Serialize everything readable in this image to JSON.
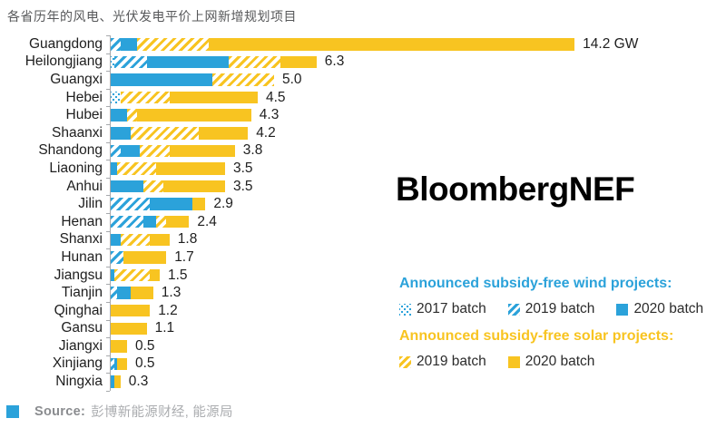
{
  "title": "各省历年的风电、光伏发电平价上网新增规划项目",
  "logo": "BloombergNEF",
  "source": {
    "label": "Source:",
    "text": "彭博新能源财经, 能源局"
  },
  "colors": {
    "wind_blue": "#2ba2da",
    "solar_yellow": "#f8c421",
    "title_gray": "#57585a",
    "label_dark": "#1e1e1e",
    "axis_gray": "#a7a9ac",
    "source_gray": "#8a8c8f"
  },
  "legend": {
    "wind_heading": "Announced subsidy-free wind projects:",
    "wind_items": [
      {
        "label": "2017 batch",
        "group": "wind",
        "pattern": "dotted"
      },
      {
        "label": "2019 batch",
        "group": "wind",
        "pattern": "hatched"
      },
      {
        "label": "2020 batch",
        "group": "wind",
        "pattern": "solid"
      }
    ],
    "solar_heading": "Announced subsidy-free solar projects:",
    "solar_items": [
      {
        "label": "2019 batch",
        "group": "solar",
        "pattern": "hatched"
      },
      {
        "label": "2020 batch",
        "group": "solar",
        "pattern": "solid"
      }
    ]
  },
  "chart_data": {
    "type": "bar",
    "orientation": "horizontal",
    "unit": "GW",
    "xlim": [
      0,
      15.6
    ],
    "grid": false,
    "series_keys": [
      "wind_2017",
      "wind_2019",
      "wind_2020",
      "solar_2019",
      "solar_2020"
    ],
    "rows": [
      {
        "province": "Guangdong",
        "total": 14.2,
        "value_label": "14.2 GW",
        "segments": [
          {
            "series": "wind_2019",
            "value": 0.3
          },
          {
            "series": "wind_2020",
            "value": 0.5
          },
          {
            "series": "solar_2019",
            "value": 2.2
          },
          {
            "series": "solar_2020",
            "value": 11.2
          }
        ]
      },
      {
        "province": "Heilongjiang",
        "total": 6.3,
        "value_label": "6.3",
        "segments": [
          {
            "series": "wind_2017",
            "value": 0.1
          },
          {
            "series": "wind_2019",
            "value": 1.0
          },
          {
            "series": "wind_2020",
            "value": 2.5
          },
          {
            "series": "solar_2019",
            "value": 1.6
          },
          {
            "series": "solar_2020",
            "value": 1.1
          }
        ]
      },
      {
        "province": "Guangxi",
        "total": 5.0,
        "value_label": "5.0",
        "segments": [
          {
            "series": "wind_2020",
            "value": 3.1
          },
          {
            "series": "solar_2019",
            "value": 1.9
          }
        ]
      },
      {
        "province": "Hebei",
        "total": 4.5,
        "value_label": "4.5",
        "segments": [
          {
            "series": "wind_2017",
            "value": 0.3
          },
          {
            "series": "solar_2019",
            "value": 1.5
          },
          {
            "series": "solar_2020",
            "value": 2.7
          }
        ]
      },
      {
        "province": "Hubei",
        "total": 4.3,
        "value_label": "4.3",
        "segments": [
          {
            "series": "wind_2020",
            "value": 0.5
          },
          {
            "series": "solar_2019",
            "value": 0.3
          },
          {
            "series": "solar_2020",
            "value": 3.5
          }
        ]
      },
      {
        "province": "Shaanxi",
        "total": 4.2,
        "value_label": "4.2",
        "segments": [
          {
            "series": "wind_2020",
            "value": 0.6
          },
          {
            "series": "solar_2019",
            "value": 2.1
          },
          {
            "series": "solar_2020",
            "value": 1.5
          }
        ]
      },
      {
        "province": "Shandong",
        "total": 3.8,
        "value_label": "3.8",
        "segments": [
          {
            "series": "wind_2019",
            "value": 0.3
          },
          {
            "series": "wind_2020",
            "value": 0.6
          },
          {
            "series": "solar_2019",
            "value": 0.9
          },
          {
            "series": "solar_2020",
            "value": 2.0
          }
        ]
      },
      {
        "province": "Liaoning",
        "total": 3.5,
        "value_label": "3.5",
        "segments": [
          {
            "series": "wind_2020",
            "value": 0.2
          },
          {
            "series": "solar_2019",
            "value": 1.2
          },
          {
            "series": "solar_2020",
            "value": 2.1
          }
        ]
      },
      {
        "province": "Anhui",
        "total": 3.5,
        "value_label": "3.5",
        "segments": [
          {
            "series": "wind_2020",
            "value": 1.0
          },
          {
            "series": "solar_2019",
            "value": 0.6
          },
          {
            "series": "solar_2020",
            "value": 1.9
          }
        ]
      },
      {
        "province": "Jilin",
        "total": 2.9,
        "value_label": "2.9",
        "segments": [
          {
            "series": "wind_2019",
            "value": 1.2
          },
          {
            "series": "wind_2020",
            "value": 1.3
          },
          {
            "series": "solar_2020",
            "value": 0.4
          }
        ]
      },
      {
        "province": "Henan",
        "total": 2.4,
        "value_label": "2.4",
        "segments": [
          {
            "series": "wind_2019",
            "value": 1.0
          },
          {
            "series": "wind_2020",
            "value": 0.4
          },
          {
            "series": "solar_2019",
            "value": 0.3
          },
          {
            "series": "solar_2020",
            "value": 0.7
          }
        ]
      },
      {
        "province": "Shanxi",
        "total": 1.8,
        "value_label": "1.8",
        "segments": [
          {
            "series": "wind_2020",
            "value": 0.3
          },
          {
            "series": "solar_2019",
            "value": 0.9
          },
          {
            "series": "solar_2020",
            "value": 0.6
          }
        ]
      },
      {
        "province": "Hunan",
        "total": 1.7,
        "value_label": "1.7",
        "segments": [
          {
            "series": "wind_2019",
            "value": 0.4
          },
          {
            "series": "solar_2020",
            "value": 1.3
          }
        ]
      },
      {
        "province": "Jiangsu",
        "total": 1.5,
        "value_label": "1.5",
        "segments": [
          {
            "series": "wind_2020",
            "value": 0.1
          },
          {
            "series": "solar_2019",
            "value": 1.1
          },
          {
            "series": "solar_2020",
            "value": 0.3
          }
        ]
      },
      {
        "province": "Tianjin",
        "total": 1.3,
        "value_label": "1.3",
        "segments": [
          {
            "series": "wind_2019",
            "value": 0.2
          },
          {
            "series": "wind_2020",
            "value": 0.4
          },
          {
            "series": "solar_2020",
            "value": 0.7
          }
        ]
      },
      {
        "province": "Qinghai",
        "total": 1.2,
        "value_label": "1.2",
        "segments": [
          {
            "series": "solar_2020",
            "value": 1.2
          }
        ]
      },
      {
        "province": "Gansu",
        "total": 1.1,
        "value_label": "1.1",
        "segments": [
          {
            "series": "solar_2020",
            "value": 1.1
          }
        ]
      },
      {
        "province": "Jiangxi",
        "total": 0.5,
        "value_label": "0.5",
        "segments": [
          {
            "series": "solar_2020",
            "value": 0.5
          }
        ]
      },
      {
        "province": "Xinjiang",
        "total": 0.5,
        "value_label": "0.5",
        "segments": [
          {
            "series": "wind_2019",
            "value": 0.1
          },
          {
            "series": "wind_2020",
            "value": 0.1
          },
          {
            "series": "solar_2020",
            "value": 0.3
          }
        ]
      },
      {
        "province": "Ningxia",
        "total": 0.3,
        "value_label": "0.3",
        "segments": [
          {
            "series": "wind_2020",
            "value": 0.1
          },
          {
            "series": "solar_2020",
            "value": 0.2
          }
        ]
      }
    ]
  }
}
